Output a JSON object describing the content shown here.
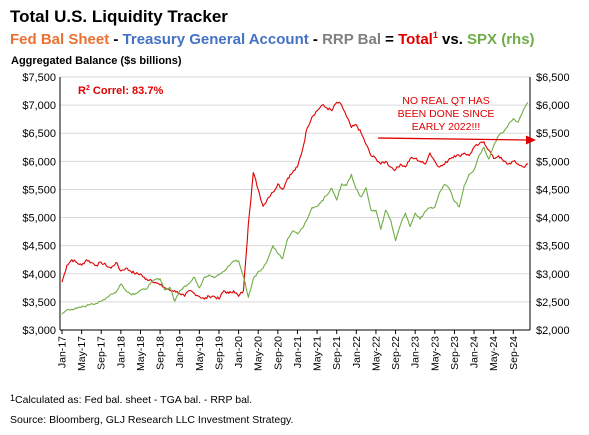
{
  "header": {
    "title": "Total U.S. Liquidity Tracker",
    "sub_fed": "Fed Bal Sheet",
    "sub_dash1": " - ",
    "sub_tga": "Treasury General Account",
    "sub_dash2": " - ",
    "sub_rrp": "RRP Bal",
    "sub_eq": " = ",
    "sub_total": "Total",
    "sub_total_sup": "1",
    "sub_vs": " vs. ",
    "sub_spx": "SPX (rhs)"
  },
  "footer": {
    "footnote_sup": "1",
    "footnote": "Calculated as: Fed bal. sheet - TGA bal. - RRP bal.",
    "source": "Source: Bloomberg, GLJ Research LLC Investment Strategy."
  },
  "chart_data": {
    "type": "line",
    "ylabel": "Aggregated Balance ($s billions)",
    "ylim": [
      3000,
      7500
    ],
    "y2lim": [
      2000,
      6500
    ],
    "left_ticks": [
      "$3,000",
      "$3,500",
      "$4,000",
      "$4,500",
      "$5,000",
      "$5,500",
      "$6,000",
      "$6,500",
      "$7,000",
      "$7,500"
    ],
    "right_ticks": [
      "$2,000",
      "$2,500",
      "$3,000",
      "$3,500",
      "$4,000",
      "$4,500",
      "$5,000",
      "$5,500",
      "$6,000",
      "$6,500"
    ],
    "x_ticks": [
      "Jan-17",
      "May-17",
      "Sep-17",
      "Jan-18",
      "May-18",
      "Sep-18",
      "Jan-19",
      "May-19",
      "Sep-19",
      "Jan-20",
      "May-20",
      "Sep-20",
      "Jan-21",
      "May-21",
      "Sep-21",
      "Jan-22",
      "May-22",
      "Sep-22",
      "Jan-23",
      "May-23",
      "Sep-23",
      "Jan-24",
      "May-24",
      "Sep-24"
    ],
    "grid": "horizontal",
    "colors": {
      "total": "#e00000",
      "spx": "#70ad47",
      "annotation": "#e00000",
      "grid": "#d9d9d9",
      "axis": "#000000"
    },
    "annotations": {
      "correlation_prefix": "R",
      "correlation_sup": "2",
      "correlation_suffix": " Correl: 83.7%",
      "callout_lines": [
        "NO REAL QT HAS",
        "BEEN DONE SINCE",
        "EARLY 2022!!!"
      ]
    },
    "series": [
      {
        "axis": "left",
        "x": [
          "2017-01",
          "2017-02",
          "2017-03",
          "2017-04",
          "2017-05",
          "2017-06",
          "2017-07",
          "2017-08",
          "2017-09",
          "2017-10",
          "2017-11",
          "2017-12",
          "2018-01",
          "2018-02",
          "2018-03",
          "2018-04",
          "2018-05",
          "2018-06",
          "2018-07",
          "2018-08",
          "2018-09",
          "2018-10",
          "2018-11",
          "2018-12",
          "2019-01",
          "2019-02",
          "2019-03",
          "2019-04",
          "2019-05",
          "2019-06",
          "2019-07",
          "2019-08",
          "2019-09",
          "2019-10",
          "2019-11",
          "2019-12",
          "2020-01",
          "2020-02",
          "2020-03",
          "2020-04",
          "2020-05",
          "2020-06",
          "2020-07",
          "2020-08",
          "2020-09",
          "2020-10",
          "2020-11",
          "2020-12",
          "2021-01",
          "2021-02",
          "2021-03",
          "2021-04",
          "2021-05",
          "2021-06",
          "2021-07",
          "2021-08",
          "2021-09",
          "2021-10",
          "2021-11",
          "2021-12",
          "2022-01",
          "2022-02",
          "2022-03",
          "2022-04",
          "2022-05",
          "2022-06",
          "2022-07",
          "2022-08",
          "2022-09",
          "2022-10",
          "2022-11",
          "2022-12",
          "2023-01",
          "2023-02",
          "2023-03",
          "2023-04",
          "2023-05",
          "2023-06",
          "2023-07",
          "2023-08",
          "2023-09",
          "2023-10",
          "2023-11",
          "2023-12",
          "2024-01",
          "2024-02",
          "2024-03",
          "2024-04",
          "2024-05",
          "2024-06",
          "2024-07",
          "2024-08",
          "2024-09",
          "2024-10",
          "2024-11",
          "2024-12"
        ],
        "values": [
          3850,
          4150,
          4250,
          4200,
          4150,
          4250,
          4200,
          4150,
          4200,
          4150,
          4100,
          4200,
          4050,
          4100,
          4050,
          4000,
          4000,
          3900,
          3900,
          3850,
          3800,
          3750,
          3700,
          3700,
          3650,
          3600,
          3700,
          3650,
          3600,
          3550,
          3600,
          3600,
          3550,
          3700,
          3650,
          3700,
          3600,
          3700,
          4900,
          5800,
          5500,
          5200,
          5350,
          5450,
          5600,
          5500,
          5700,
          5800,
          5900,
          6200,
          6600,
          6800,
          6900,
          7000,
          6950,
          6900,
          7050,
          7000,
          6800,
          6600,
          6650,
          6500,
          6300,
          6100,
          6050,
          5950,
          6000,
          5900,
          5850,
          5950,
          5900,
          6050,
          6050,
          6000,
          5950,
          6150,
          6000,
          5900,
          5950,
          6050,
          6100,
          6100,
          6150,
          6100,
          6250,
          6300,
          6350,
          6200,
          6050,
          6100,
          6000,
          5950,
          6000,
          5950,
          5900,
          5950
        ]
      },
      {
        "axis": "right",
        "x": [
          "2017-01",
          "2017-02",
          "2017-03",
          "2017-04",
          "2017-05",
          "2017-06",
          "2017-07",
          "2017-08",
          "2017-09",
          "2017-10",
          "2017-11",
          "2017-12",
          "2018-01",
          "2018-02",
          "2018-03",
          "2018-04",
          "2018-05",
          "2018-06",
          "2018-07",
          "2018-08",
          "2018-09",
          "2018-10",
          "2018-11",
          "2018-12",
          "2019-01",
          "2019-02",
          "2019-03",
          "2019-04",
          "2019-05",
          "2019-06",
          "2019-07",
          "2019-08",
          "2019-09",
          "2019-10",
          "2019-11",
          "2019-12",
          "2020-01",
          "2020-02",
          "2020-03",
          "2020-04",
          "2020-05",
          "2020-06",
          "2020-07",
          "2020-08",
          "2020-09",
          "2020-10",
          "2020-11",
          "2020-12",
          "2021-01",
          "2021-02",
          "2021-03",
          "2021-04",
          "2021-05",
          "2021-06",
          "2021-07",
          "2021-08",
          "2021-09",
          "2021-10",
          "2021-11",
          "2021-12",
          "2022-01",
          "2022-02",
          "2022-03",
          "2022-04",
          "2022-05",
          "2022-06",
          "2022-07",
          "2022-08",
          "2022-09",
          "2022-10",
          "2022-11",
          "2022-12",
          "2023-01",
          "2023-02",
          "2023-03",
          "2023-04",
          "2023-05",
          "2023-06",
          "2023-07",
          "2023-08",
          "2023-09",
          "2023-10",
          "2023-11",
          "2023-12",
          "2024-01",
          "2024-02",
          "2024-03",
          "2024-04",
          "2024-05",
          "2024-06",
          "2024-07",
          "2024-08",
          "2024-09",
          "2024-10",
          "2024-11",
          "2024-12"
        ],
        "values": [
          2280,
          2360,
          2370,
          2380,
          2410,
          2430,
          2470,
          2470,
          2510,
          2570,
          2640,
          2670,
          2820,
          2710,
          2640,
          2650,
          2710,
          2720,
          2820,
          2900,
          2910,
          2710,
          2760,
          2510,
          2700,
          2780,
          2830,
          2940,
          2750,
          2940,
          2980,
          2930,
          2980,
          3040,
          3140,
          3230,
          3230,
          2950,
          2580,
          2910,
          3040,
          3100,
          3270,
          3500,
          3360,
          3270,
          3620,
          3760,
          3710,
          3810,
          3970,
          4180,
          4200,
          4300,
          4400,
          4520,
          4310,
          4600,
          4570,
          4770,
          4500,
          4370,
          4530,
          4130,
          4130,
          3790,
          4130,
          3960,
          3590,
          3870,
          4080,
          3840,
          4080,
          3970,
          4110,
          4170,
          4180,
          4450,
          4590,
          4510,
          4290,
          4190,
          4570,
          4770,
          4850,
          5100,
          5250,
          5040,
          5280,
          5460,
          5520,
          5650,
          5760,
          5700,
          5900,
          6050
        ]
      }
    ]
  }
}
